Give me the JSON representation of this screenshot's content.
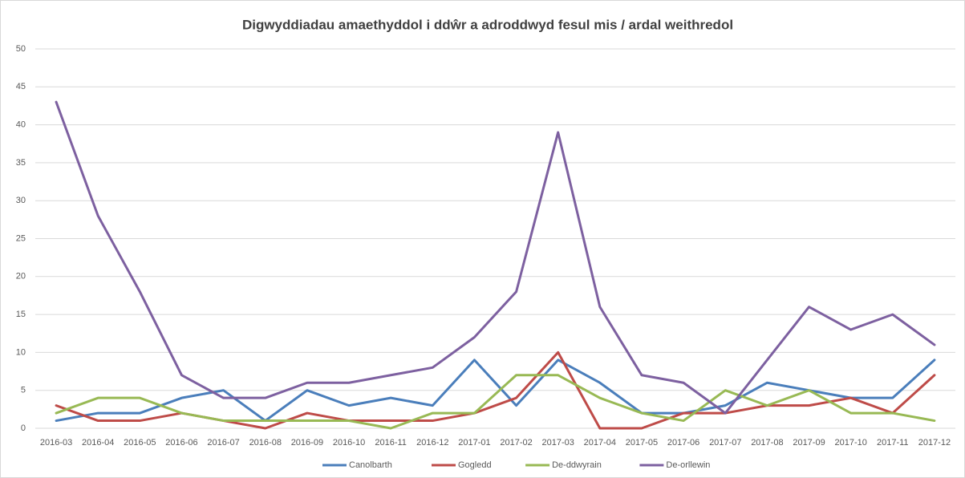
{
  "chart_data": {
    "type": "line",
    "title": "Digwyddiadau amaethyddol i ddŵr a adroddwyd fesul mis / ardal weithredol",
    "categories": [
      "2016-03",
      "2016-04",
      "2016-05",
      "2016-06",
      "2016-07",
      "2016-08",
      "2016-09",
      "2016-10",
      "2016-11",
      "2016-12",
      "2017-01",
      "2017-02",
      "2017-03",
      "2017-04",
      "2017-05",
      "2017-06",
      "2017-07",
      "2017-08",
      "2017-09",
      "2017-10",
      "2017-11",
      "2017-12"
    ],
    "series": [
      {
        "name": "Canolbarth",
        "color": "#4a7ebb",
        "values": [
          1,
          2,
          2,
          4,
          5,
          1,
          5,
          3,
          4,
          3,
          9,
          3,
          9,
          6,
          2,
          2,
          3,
          6,
          5,
          4,
          4,
          9
        ]
      },
      {
        "name": "Gogledd",
        "color": "#be4b48",
        "values": [
          3,
          1,
          1,
          2,
          1,
          0,
          2,
          1,
          1,
          1,
          2,
          4,
          10,
          0,
          0,
          2,
          2,
          3,
          3,
          4,
          2,
          7
        ]
      },
      {
        "name": "De-ddwyrain",
        "color": "#98b954",
        "values": [
          2,
          4,
          4,
          2,
          1,
          1,
          1,
          1,
          0,
          2,
          2,
          7,
          7,
          4,
          2,
          1,
          5,
          3,
          5,
          2,
          2,
          1
        ]
      },
      {
        "name": "De-orllewin",
        "color": "#7d60a0",
        "values": [
          43,
          28,
          18,
          7,
          4,
          4,
          6,
          6,
          7,
          8,
          12,
          18,
          39,
          16,
          7,
          6,
          2,
          9,
          16,
          13,
          15,
          11
        ]
      }
    ],
    "ylim": [
      0,
      50
    ],
    "yticks": [
      0,
      5,
      10,
      15,
      20,
      25,
      30,
      35,
      40,
      45,
      50
    ],
    "grid": true,
    "legend": "bottom"
  }
}
